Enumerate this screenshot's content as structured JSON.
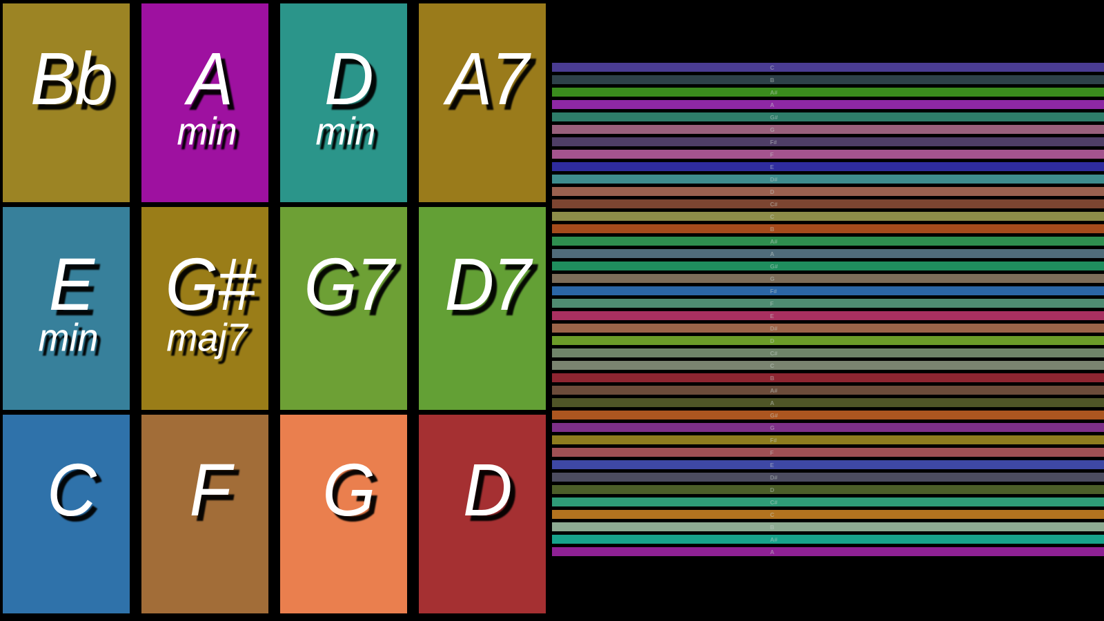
{
  "app": {
    "background": "#000000"
  },
  "chord_grid": {
    "pads": [
      {
        "name": "Bb",
        "suffix": "",
        "color": "#9c8424"
      },
      {
        "name": "A",
        "suffix": "min",
        "color": "#9e11a0"
      },
      {
        "name": "D",
        "suffix": "min",
        "color": "#2b958a"
      },
      {
        "name": "A7",
        "suffix": "",
        "color": "#9a7b1b"
      },
      {
        "name": "E",
        "suffix": "min",
        "color": "#37809b"
      },
      {
        "name": "G#",
        "suffix": "maj7",
        "color": "#9a7d18"
      },
      {
        "name": "G7",
        "suffix": "",
        "color": "#6da035"
      },
      {
        "name": "D7",
        "suffix": "",
        "color": "#63a035"
      },
      {
        "name": "C",
        "suffix": "",
        "color": "#2f72aa"
      },
      {
        "name": "F",
        "suffix": "",
        "color": "#a26d38"
      },
      {
        "name": "G",
        "suffix": "",
        "color": "#ea7f4e"
      },
      {
        "name": "D",
        "suffix": "",
        "color": "#a53032"
      }
    ]
  },
  "note_lanes": {
    "label_color": "rgba(200,212,206,0.48)",
    "lanes": [
      {
        "note": "C",
        "color": "#4a3c92"
      },
      {
        "note": "B",
        "color": "#2e4149"
      },
      {
        "note": "A#",
        "color": "#3a8c1d"
      },
      {
        "note": "A",
        "color": "#8e28a4"
      },
      {
        "note": "G#",
        "color": "#2e7d6a"
      },
      {
        "note": "G",
        "color": "#99607c"
      },
      {
        "note": "F#",
        "color": "#4f3e66"
      },
      {
        "note": "F",
        "color": "#a4548e"
      },
      {
        "note": "E",
        "color": "#2f2c9e"
      },
      {
        "note": "D#",
        "color": "#3e8c8e"
      },
      {
        "note": "D",
        "color": "#9a614f"
      },
      {
        "note": "C#",
        "color": "#7c4531"
      },
      {
        "note": "C",
        "color": "#8d8d49"
      },
      {
        "note": "B",
        "color": "#a54b1c"
      },
      {
        "note": "A#",
        "color": "#2f8e4f"
      },
      {
        "note": "A",
        "color": "#506c7a"
      },
      {
        "note": "G#",
        "color": "#1f8e5e"
      },
      {
        "note": "G",
        "color": "#7c6c59"
      },
      {
        "note": "F#",
        "color": "#2b66a6"
      },
      {
        "note": "F",
        "color": "#4f8c72"
      },
      {
        "note": "E",
        "color": "#a93060"
      },
      {
        "note": "D#",
        "color": "#9c6449"
      },
      {
        "note": "D",
        "color": "#6c9c29"
      },
      {
        "note": "C#",
        "color": "#6f8469"
      },
      {
        "note": "C",
        "color": "#7a8470"
      },
      {
        "note": "B",
        "color": "#8e2531"
      },
      {
        "note": "A#",
        "color": "#6c4c3a"
      },
      {
        "note": "A",
        "color": "#4f5527"
      },
      {
        "note": "G#",
        "color": "#ac5620"
      },
      {
        "note": "G",
        "color": "#7e3088"
      },
      {
        "note": "F#",
        "color": "#8e7c1f"
      },
      {
        "note": "F",
        "color": "#a05054"
      },
      {
        "note": "E",
        "color": "#3e48a4"
      },
      {
        "note": "D#",
        "color": "#4c4c60"
      },
      {
        "note": "D",
        "color": "#4c5e29"
      },
      {
        "note": "C#",
        "color": "#2f9c77"
      },
      {
        "note": "C",
        "color": "#b2731f"
      },
      {
        "note": "B",
        "color": "#8dab92"
      },
      {
        "note": "A#",
        "color": "#17a38b"
      },
      {
        "note": "A",
        "color": "#8e2194"
      }
    ]
  }
}
